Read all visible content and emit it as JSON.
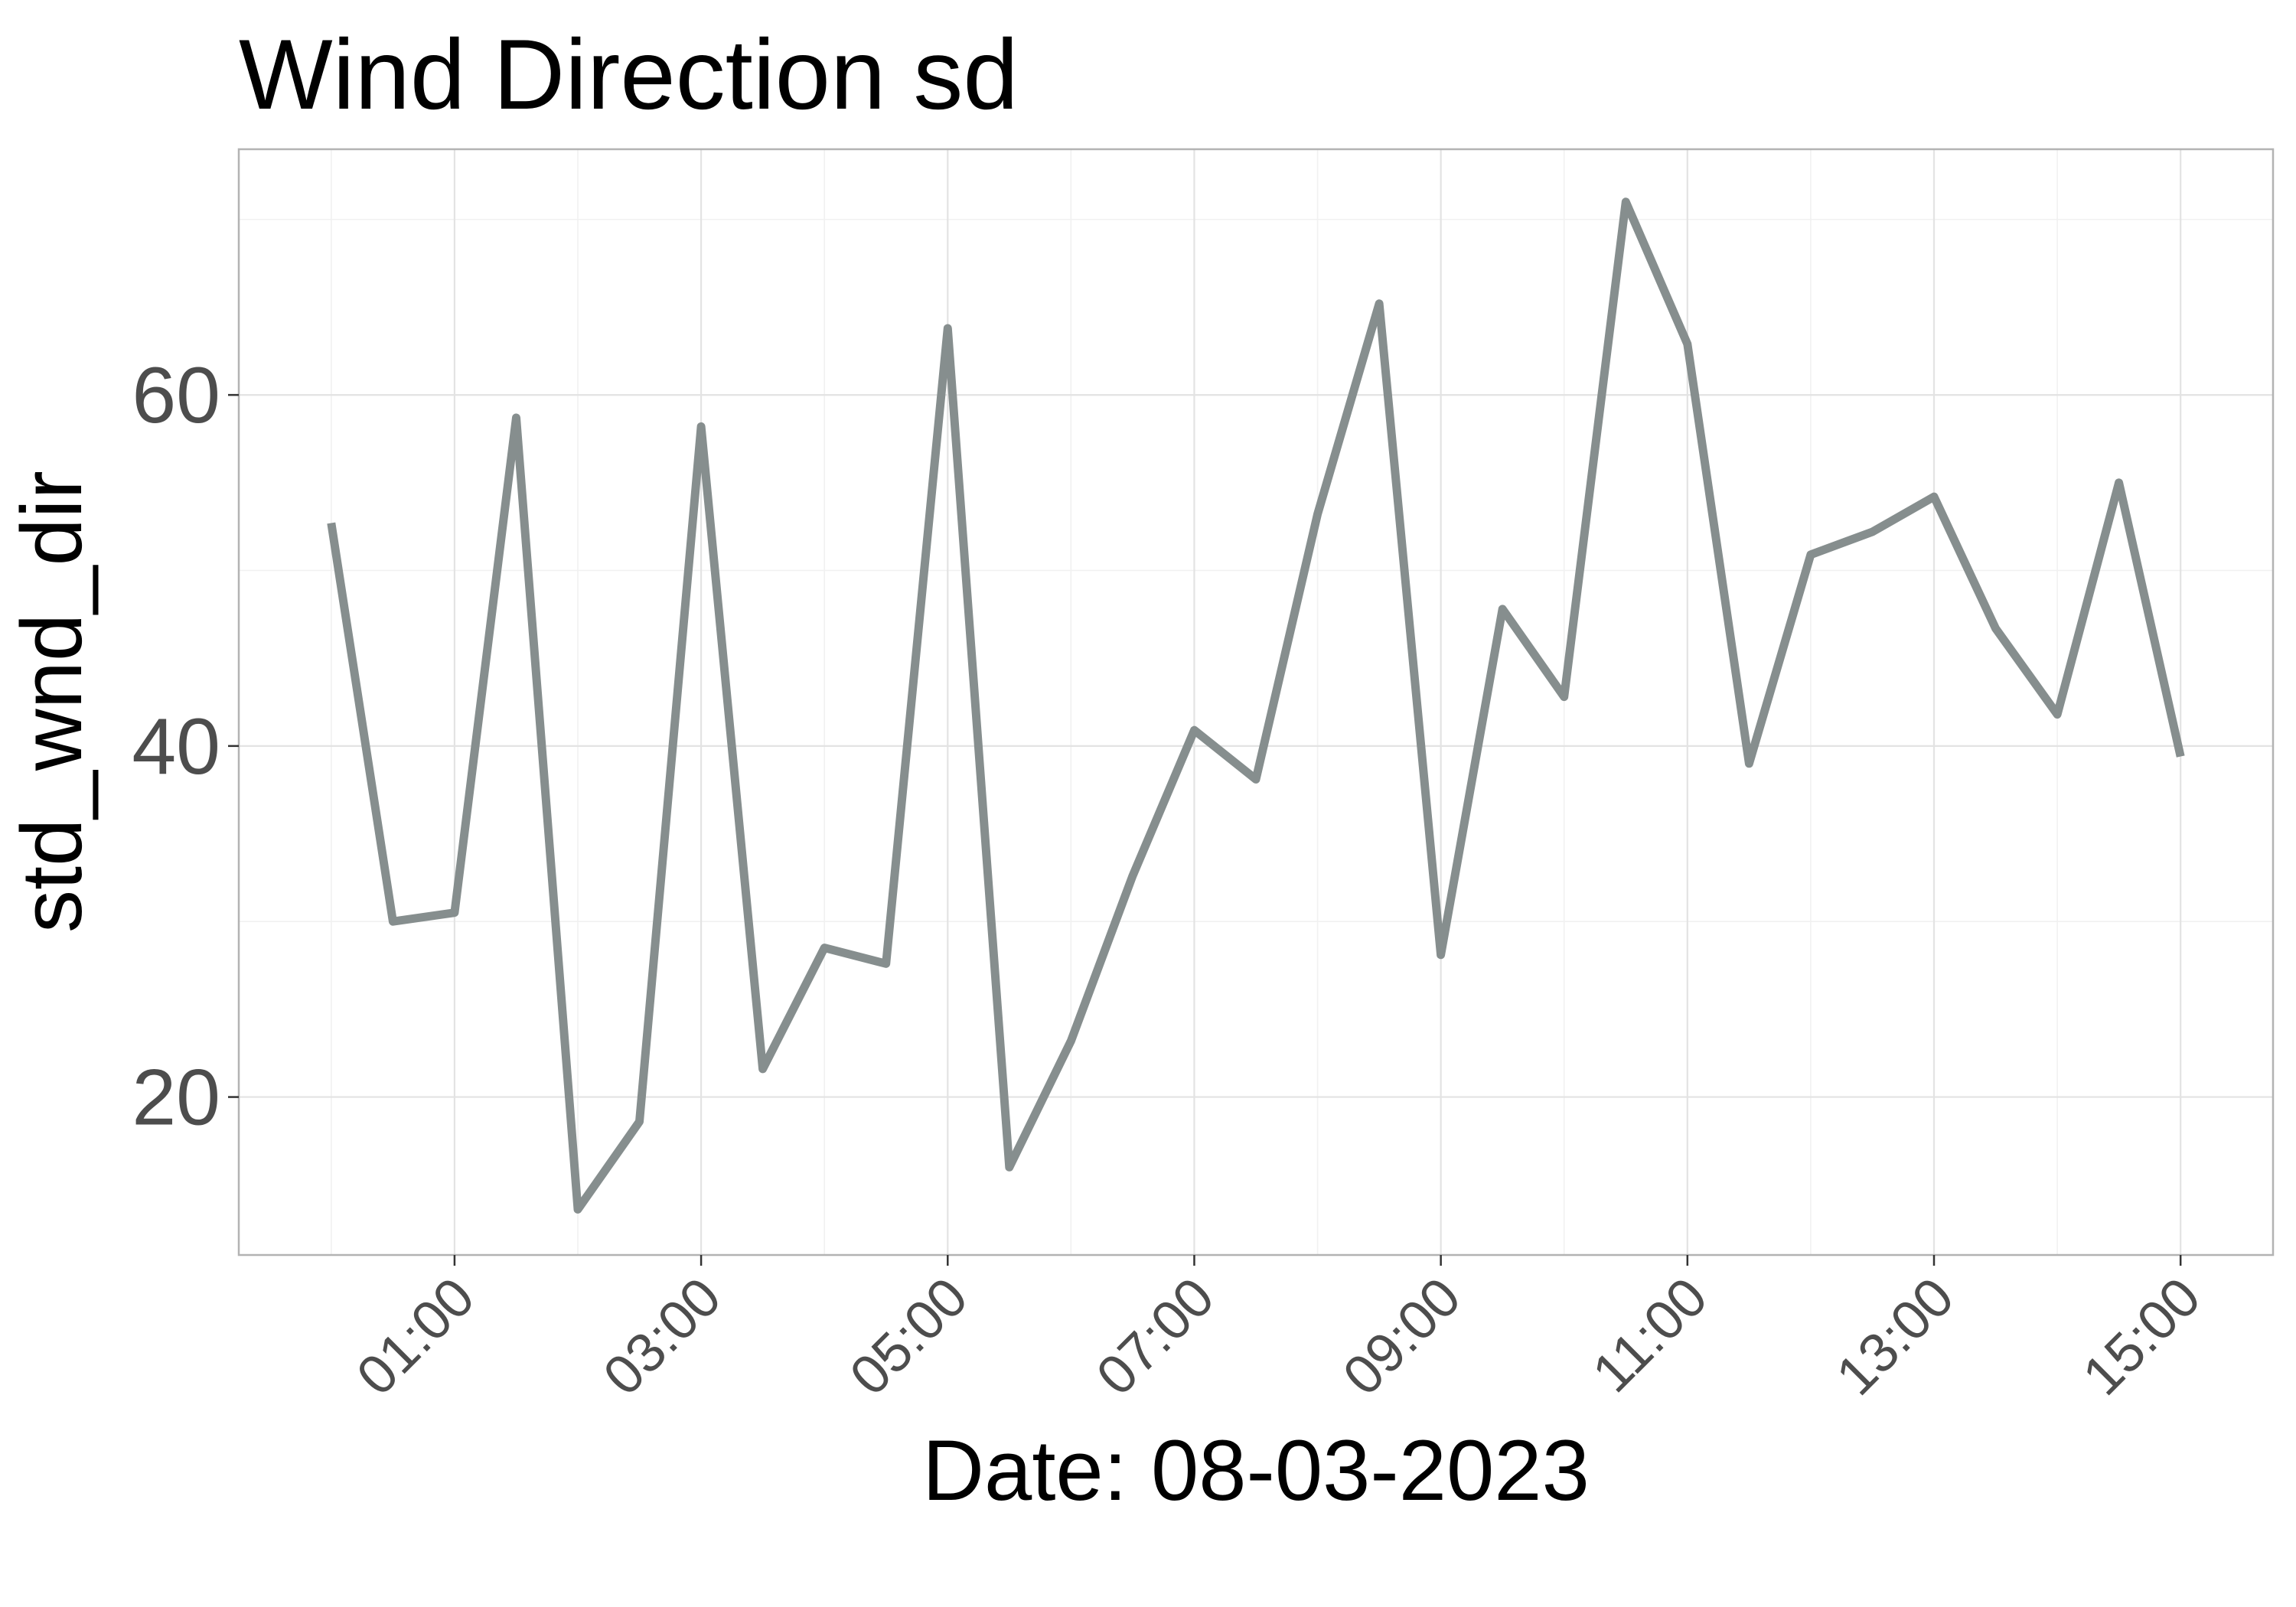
{
  "chart_data": {
    "type": "line",
    "title": "Wind Direction sd",
    "xlabel": "Date: 08-03-2023",
    "ylabel": "std_wnd_dir",
    "x_unit": "time of day (HH:MM)",
    "x_ticks": [
      "01:00",
      "03:00",
      "05:00",
      "07:00",
      "09:00",
      "11:00",
      "13:00",
      "15:00"
    ],
    "y_ticks": [
      20,
      40,
      60
    ],
    "xlim": [
      "23:15",
      "15:45"
    ],
    "ylim": [
      11,
      74
    ],
    "grid": true,
    "legend": "none",
    "series": [
      {
        "color": "#868e8e",
        "x": [
          "00:00",
          "00:30",
          "01:00",
          "01:30",
          "02:00",
          "02:30",
          "03:00",
          "03:30",
          "04:00",
          "04:30",
          "05:00",
          "05:30",
          "06:00",
          "06:30",
          "07:00",
          "07:30",
          "08:00",
          "08:30",
          "09:00",
          "09:30",
          "10:00",
          "10:30",
          "11:00",
          "11:30",
          "12:00",
          "12:30",
          "13:00",
          "13:30",
          "14:00",
          "14:30",
          "15:00"
        ],
        "values": [
          52.7,
          30.0,
          30.5,
          58.7,
          13.6,
          18.6,
          58.2,
          21.6,
          28.5,
          27.6,
          63.8,
          16.0,
          23.2,
          32.6,
          40.9,
          38.1,
          53.2,
          65.2,
          28.1,
          47.8,
          42.8,
          71.0,
          62.9,
          39.0,
          50.9,
          52.2,
          54.2,
          46.7,
          41.8,
          55.0,
          39.4
        ]
      }
    ]
  },
  "colors": {
    "line": "#868e8e",
    "grid_major": "#e3e3e3",
    "grid_minor": "#f1f1f1",
    "panel_border": "#b3b3b3",
    "tick_text": "#4d4d4d"
  }
}
